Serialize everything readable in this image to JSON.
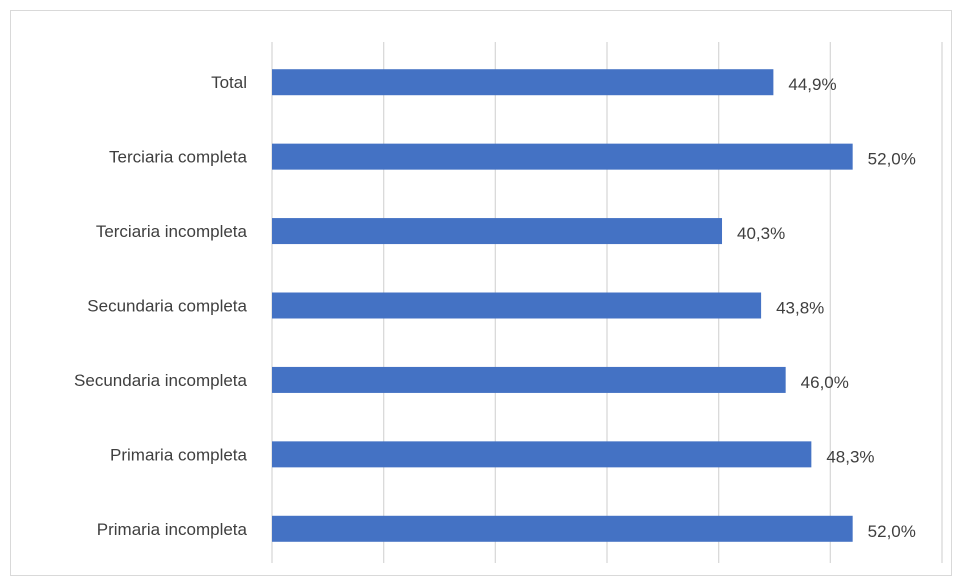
{
  "colors": {
    "bar": "#4472c4",
    "gridline": "#d9d9d9",
    "text": "#3f3f3f",
    "background": "#ffffff"
  },
  "chart_data": {
    "type": "bar",
    "orientation": "horizontal",
    "categories": [
      "Total",
      "Terciaria completa",
      "Terciaria incompleta",
      "Secundaria completa",
      "Secundaria incompleta",
      "Primaria completa",
      "Primaria incompleta"
    ],
    "values": [
      44.9,
      52.0,
      40.3,
      43.8,
      46.0,
      48.3,
      52.0
    ],
    "value_labels": [
      "44,9%",
      "52,0%",
      "40,3%",
      "43,8%",
      "46,0%",
      "48,3%",
      "52,0%"
    ],
    "title": "",
    "xlabel": "",
    "ylabel": "",
    "xlim": [
      0,
      60
    ],
    "x_gridline_step": 10,
    "grid": true,
    "legend": "none"
  }
}
